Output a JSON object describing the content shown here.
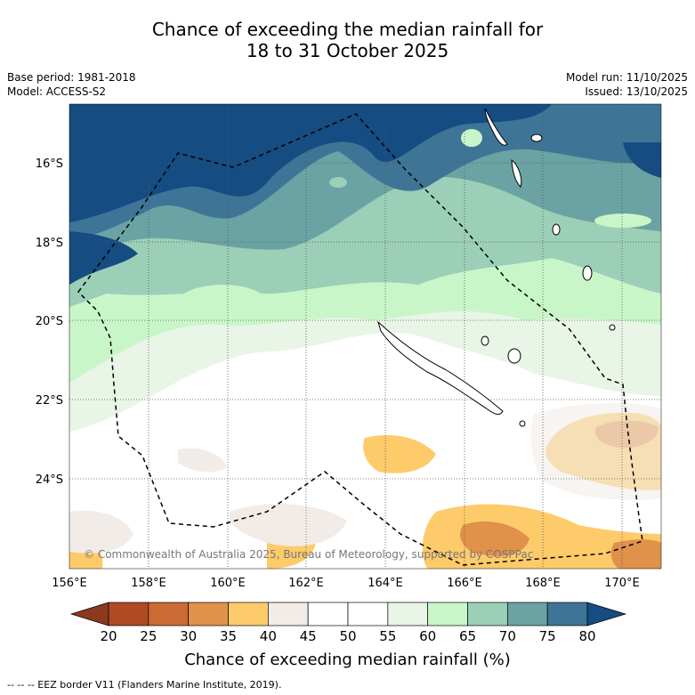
{
  "title": {
    "line1": "Chance of exceeding the median rainfall for",
    "line2": "18 to 31 October 2025"
  },
  "meta": {
    "base_period": "Base period: 1981-2018",
    "model": "Model: ACCESS-S2",
    "model_run": "Model run: 11/10/2025",
    "issued": "Issued: 13/10/2025"
  },
  "map": {
    "lat_labels": [
      "16°S",
      "18°S",
      "20°S",
      "22°S",
      "24°S"
    ],
    "lon_labels": [
      "156°E",
      "158°E",
      "160°E",
      "162°E",
      "164°E",
      "166°E",
      "168°E",
      "170°E"
    ],
    "copyright": "© Commonwealth of Australia 2025, Bureau of Meteorology, supported by COSPPac"
  },
  "colorbar": {
    "label": "Chance of exceeding median rainfall (%)",
    "ticks": [
      "20",
      "25",
      "30",
      "35",
      "40",
      "45",
      "50",
      "55",
      "60",
      "65",
      "70",
      "75",
      "80"
    ],
    "colors": [
      "#8b3a1f",
      "#b04a22",
      "#cc6a34",
      "#e0914a",
      "#fecb6a",
      "#f1ece8",
      "#ffffff",
      "#ffffff",
      "#e9f5e6",
      "#c9f6c9",
      "#9ccfb8",
      "#6ba3a4",
      "#3e7596",
      "#154c82"
    ]
  },
  "footer": "--  --  -- EEZ border V11 (Flanders Marine Institute, 2019)."
}
